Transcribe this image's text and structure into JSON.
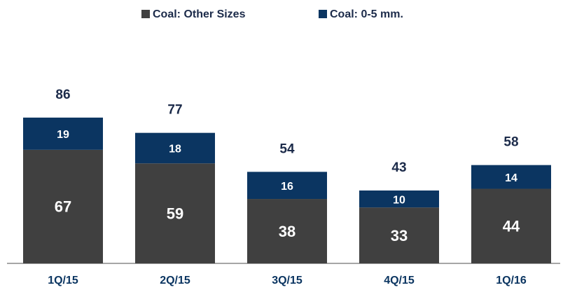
{
  "chart_data": {
    "type": "stacked-bar",
    "categories": [
      "1Q/15",
      "2Q/15",
      "3Q/15",
      "4Q/15",
      "1Q/16"
    ],
    "series": [
      {
        "name": "Coal:  Other Sizes",
        "color": "#404040",
        "values": [
          67,
          59,
          38,
          33,
          44
        ]
      },
      {
        "name": "Coal:  0-5 mm.",
        "color": "#0b3561",
        "values": [
          19,
          18,
          16,
          10,
          14
        ]
      }
    ],
    "totals": [
      86,
      77,
      54,
      43,
      58
    ],
    "legend": "top"
  }
}
